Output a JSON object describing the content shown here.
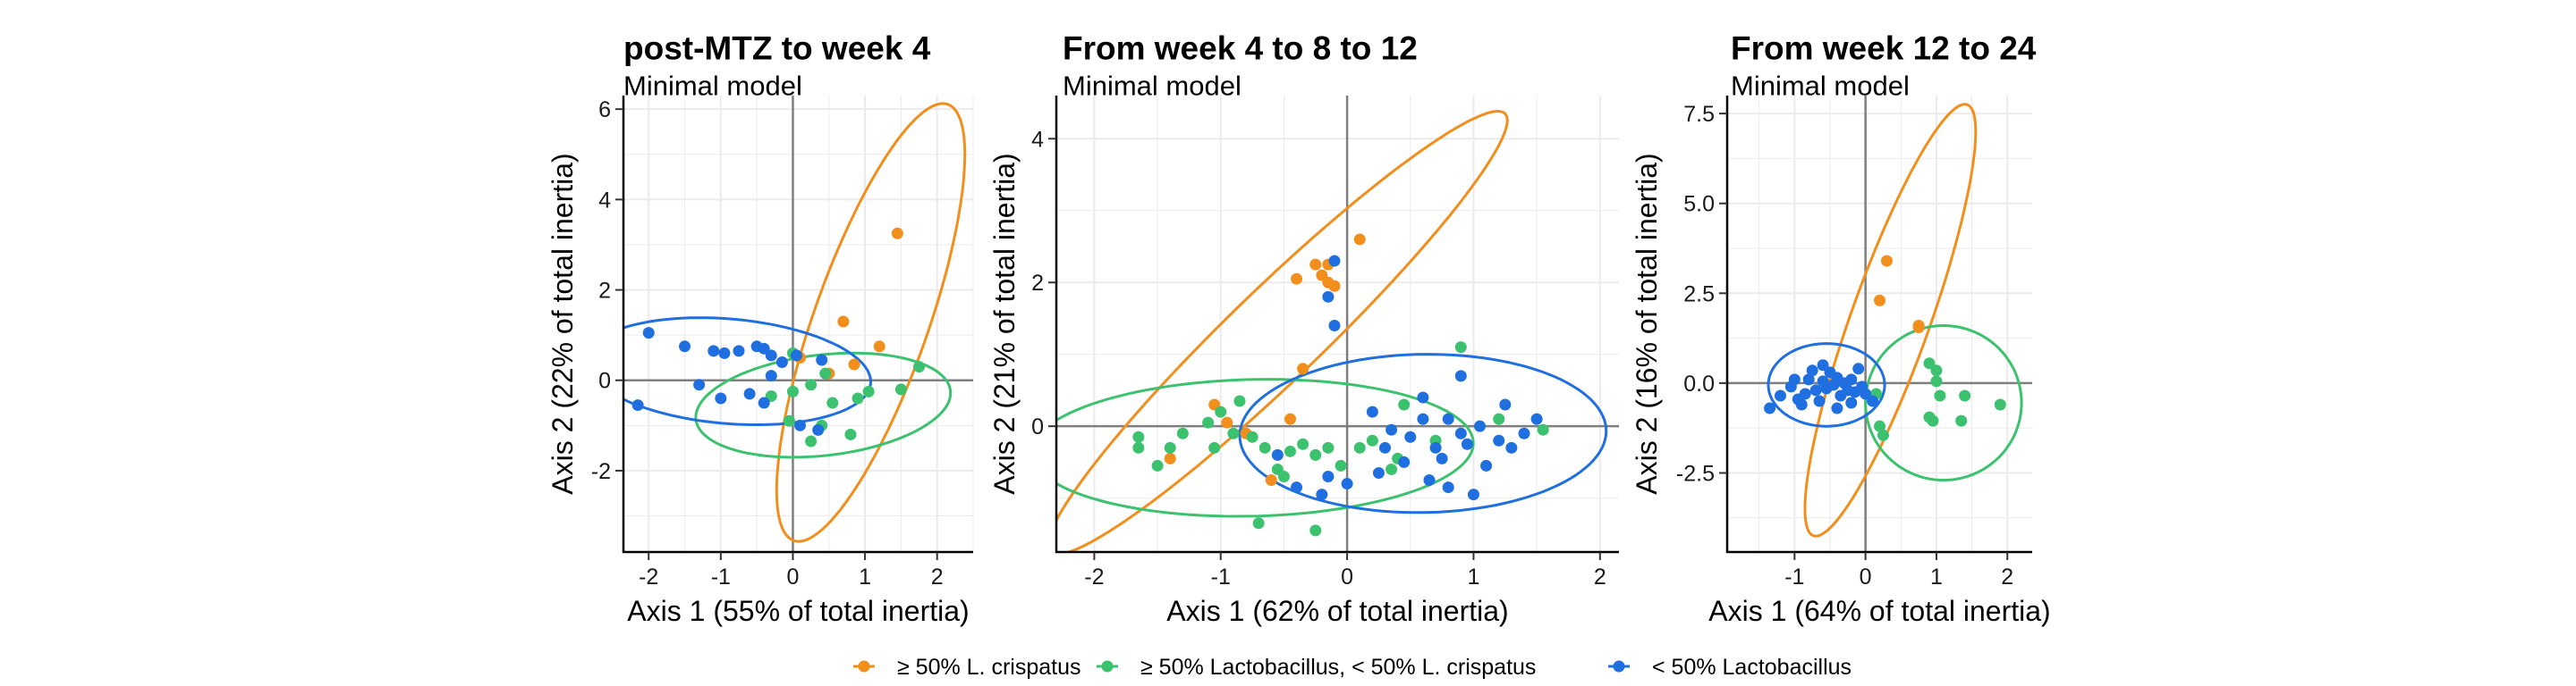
{
  "colors": {
    "crispatus": "#F28E1C",
    "lacto": "#3CC26F",
    "low": "#1F6FE0",
    "grid": "#EBEBEB",
    "zero": "#7F7F7F"
  },
  "legend": {
    "items": [
      {
        "key": "crispatus",
        "label": "≥ 50% L. crispatus"
      },
      {
        "key": "lacto",
        "label": "≥ 50% Lactobacillus, < 50% L. crispatus"
      },
      {
        "key": "low",
        "label": "< 50% Lactobacillus"
      }
    ]
  },
  "chart_data": [
    {
      "type": "scatter",
      "title": "post-MTZ to week 4",
      "subtitle": "Minimal model",
      "xlabel": "Axis 1 (55% of total inertia)",
      "ylabel": "Axis 2 (22% of total inertia)",
      "xlim": [
        -2.35,
        2.5
      ],
      "ylim": [
        -3.8,
        6.3
      ],
      "xticks": [
        -2,
        -1,
        0,
        1,
        2
      ],
      "yticks": [
        -2,
        0,
        2,
        4,
        6
      ],
      "xtick_labels": [
        "-2",
        "-1",
        "0",
        "1",
        "2"
      ],
      "ytick_labels": [
        "-2",
        "0",
        "2",
        "4",
        "6"
      ],
      "series": [
        {
          "key": "crispatus",
          "name": "≥ 50% L. crispatus",
          "points": [
            [
              1.45,
              3.25
            ],
            [
              0.7,
              1.3
            ],
            [
              1.2,
              0.75
            ],
            [
              0.85,
              0.35
            ],
            [
              0.5,
              0.15
            ],
            [
              0.1,
              0.5
            ]
          ],
          "ellipse": {
            "cx": 1.08,
            "cy": 1.28,
            "rx": 4.95,
            "ry": 0.82,
            "angle": 78
          }
        },
        {
          "key": "lacto",
          "name": "≥ 50% Lactobacillus, < 50% L. crispatus",
          "points": [
            [
              1.75,
              0.3
            ],
            [
              1.5,
              -0.2
            ],
            [
              1.05,
              -0.25
            ],
            [
              0.9,
              -0.4
            ],
            [
              0.8,
              -1.2
            ],
            [
              0.4,
              -1.0
            ],
            [
              0.25,
              -1.35
            ],
            [
              -0.05,
              -0.9
            ],
            [
              0.25,
              -0.1
            ],
            [
              0.45,
              0.15
            ],
            [
              -0.3,
              -0.35
            ],
            [
              0.0,
              -0.25
            ],
            [
              0.0,
              0.6
            ],
            [
              0.55,
              -0.5
            ]
          ],
          "ellipse": {
            "cx": 0.42,
            "cy": -0.55,
            "rx": 1.8,
            "ry": 1.1,
            "angle": 14
          }
        },
        {
          "key": "low",
          "name": "< 50% Lactobacillus",
          "points": [
            [
              -2.0,
              1.05
            ],
            [
              -2.15,
              -0.55
            ],
            [
              -1.5,
              0.75
            ],
            [
              -1.1,
              0.65
            ],
            [
              -0.95,
              0.6
            ],
            [
              -0.75,
              0.65
            ],
            [
              -0.5,
              0.75
            ],
            [
              -0.4,
              0.7
            ],
            [
              -0.3,
              0.55
            ],
            [
              -0.15,
              0.4
            ],
            [
              0.05,
              0.55
            ],
            [
              -1.3,
              -0.1
            ],
            [
              -1.0,
              -0.4
            ],
            [
              -0.6,
              -0.3
            ],
            [
              -0.4,
              -0.5
            ],
            [
              -0.3,
              0.1
            ],
            [
              0.4,
              0.45
            ],
            [
              0.1,
              -1.0
            ],
            [
              0.35,
              -1.1
            ]
          ],
          "ellipse": {
            "cx": -0.9,
            "cy": 0.2,
            "rx": 2.0,
            "ry": 1.15,
            "angle": -10
          }
        }
      ]
    },
    {
      "type": "scatter",
      "title": "From week 4 to 8 to 12",
      "subtitle": "Minimal model",
      "xlabel": "Axis 1 (62% of total inertia)",
      "ylabel": "Axis 2 (21% of total inertia)",
      "xlim": [
        -2.3,
        2.15
      ],
      "ylim": [
        -1.75,
        4.6
      ],
      "xticks": [
        -2,
        -1,
        0,
        1,
        2
      ],
      "yticks": [
        0,
        2,
        4
      ],
      "xtick_labels": [
        "-2",
        "-1",
        "0",
        "1",
        "2"
      ],
      "ytick_labels": [
        "0",
        "2",
        "4"
      ],
      "series": [
        {
          "key": "crispatus",
          "name": "≥ 50% L. crispatus",
          "points": [
            [
              0.1,
              2.6
            ],
            [
              -0.25,
              2.25
            ],
            [
              -0.15,
              2.25
            ],
            [
              -0.2,
              2.1
            ],
            [
              -0.15,
              2.0
            ],
            [
              -0.1,
              1.95
            ],
            [
              -0.4,
              2.05
            ],
            [
              -0.35,
              0.8
            ],
            [
              -1.05,
              0.3
            ],
            [
              -0.95,
              0.05
            ],
            [
              -0.45,
              0.1
            ],
            [
              -1.4,
              -0.45
            ],
            [
              -0.8,
              -0.1
            ],
            [
              -0.6,
              -0.75
            ]
          ],
          "ellipse": {
            "cx": -0.55,
            "cy": 1.3,
            "rx": 3.55,
            "ry": 0.45,
            "angle": 60
          }
        },
        {
          "key": "lacto",
          "name": "≥ 50% Lactobacillus, < 50% L. crispatus",
          "points": [
            [
              -1.65,
              -0.15
            ],
            [
              -1.65,
              -0.3
            ],
            [
              -1.5,
              -0.55
            ],
            [
              -1.4,
              -0.3
            ],
            [
              -1.3,
              -0.1
            ],
            [
              -1.1,
              0.05
            ],
            [
              -1.05,
              -0.3
            ],
            [
              -1.0,
              0.2
            ],
            [
              -0.9,
              -0.1
            ],
            [
              -0.85,
              0.35
            ],
            [
              -0.75,
              -0.15
            ],
            [
              -0.65,
              -0.3
            ],
            [
              -0.55,
              -0.6
            ],
            [
              -0.45,
              -0.35
            ],
            [
              -0.35,
              -0.25
            ],
            [
              -0.25,
              -0.4
            ],
            [
              -0.15,
              -0.3
            ],
            [
              -0.05,
              -0.55
            ],
            [
              0.1,
              -0.3
            ],
            [
              0.2,
              -0.2
            ],
            [
              0.35,
              -0.6
            ],
            [
              -0.25,
              -1.45
            ],
            [
              -0.7,
              -1.35
            ],
            [
              0.9,
              1.1
            ],
            [
              0.45,
              0.3
            ],
            [
              1.2,
              0.1
            ],
            [
              1.55,
              -0.05
            ],
            [
              0.7,
              -0.2
            ],
            [
              -0.5,
              -0.7
            ],
            [
              0.4,
              -0.45
            ]
          ],
          "ellipse": {
            "cx": -0.75,
            "cy": -0.3,
            "rx": 1.75,
            "ry": 0.95,
            "angle": 3
          }
        },
        {
          "key": "low",
          "name": "< 50% Lactobacillus",
          "points": [
            [
              -0.1,
              2.3
            ],
            [
              -0.15,
              1.8
            ],
            [
              -0.1,
              1.4
            ],
            [
              -0.55,
              -0.4
            ],
            [
              -0.4,
              -0.85
            ],
            [
              0.0,
              -0.8
            ],
            [
              0.2,
              0.2
            ],
            [
              0.35,
              -0.05
            ],
            [
              0.5,
              -0.15
            ],
            [
              0.6,
              0.1
            ],
            [
              0.7,
              -0.3
            ],
            [
              0.75,
              -0.45
            ],
            [
              0.8,
              0.1
            ],
            [
              0.9,
              -0.1
            ],
            [
              0.95,
              -0.25
            ],
            [
              1.05,
              0.0
            ],
            [
              1.1,
              -0.55
            ],
            [
              1.2,
              -0.2
            ],
            [
              1.3,
              -0.3
            ],
            [
              1.5,
              0.1
            ],
            [
              1.0,
              -0.95
            ],
            [
              0.65,
              -0.75
            ],
            [
              0.45,
              -0.5
            ],
            [
              0.3,
              -0.3
            ],
            [
              -0.15,
              -0.7
            ],
            [
              0.9,
              0.7
            ],
            [
              1.25,
              0.3
            ],
            [
              1.4,
              -0.1
            ],
            [
              0.6,
              0.4
            ],
            [
              0.8,
              -0.85
            ],
            [
              -0.2,
              -0.95
            ],
            [
              0.25,
              -0.65
            ]
          ],
          "ellipse": {
            "cx": 0.6,
            "cy": -0.1,
            "rx": 1.45,
            "ry": 1.1,
            "angle": 3
          }
        }
      ]
    },
    {
      "type": "scatter",
      "title": "From week 12 to 24",
      "subtitle": "Minimal model",
      "xlabel": "Axis 1 (64% of total inertia)",
      "ylabel": "Axis 2 (16% of total inertia)",
      "xlim": [
        -1.95,
        2.35
      ],
      "ylim": [
        -4.7,
        8.0
      ],
      "xticks": [
        -1,
        0,
        1,
        2
      ],
      "yticks": [
        -2.5,
        0.0,
        2.5,
        5.0,
        7.5
      ],
      "xtick_labels": [
        "-1",
        "0",
        "1",
        "2"
      ],
      "ytick_labels": [
        "-2.5",
        "0.0",
        "2.5",
        "5.0",
        "7.5"
      ],
      "series": [
        {
          "key": "crispatus",
          "name": "≥ 50% L. crispatus",
          "points": [
            [
              0.3,
              3.4
            ],
            [
              0.2,
              2.3
            ],
            [
              0.75,
              1.6
            ],
            [
              0.75,
              1.55
            ]
          ],
          "ellipse": {
            "cx": 0.35,
            "cy": 1.75,
            "rx": 6.1,
            "ry": 0.58,
            "angle": 80
          }
        },
        {
          "key": "lacto",
          "name": "≥ 50% Lactobacillus, < 50% L. crispatus",
          "points": [
            [
              0.9,
              0.55
            ],
            [
              1.0,
              0.35
            ],
            [
              1.0,
              0.05
            ],
            [
              1.05,
              -0.35
            ],
            [
              0.9,
              -0.95
            ],
            [
              0.95,
              -1.05
            ],
            [
              1.4,
              -0.35
            ],
            [
              1.35,
              -1.05
            ],
            [
              1.9,
              -0.6
            ],
            [
              0.2,
              -1.2
            ],
            [
              0.25,
              -1.45
            ],
            [
              0.15,
              -0.3
            ]
          ],
          "ellipse": {
            "cx": 1.1,
            "cy": -0.55,
            "rx": 1.1,
            "ry": 2.15,
            "angle": 0
          }
        },
        {
          "key": "low",
          "name": "< 50% Lactobacillus",
          "points": [
            [
              -1.35,
              -0.7
            ],
            [
              -1.2,
              -0.35
            ],
            [
              -1.05,
              -0.1
            ],
            [
              -1.0,
              0.1
            ],
            [
              -0.95,
              -0.45
            ],
            [
              -0.85,
              -0.3
            ],
            [
              -0.8,
              0.1
            ],
            [
              -0.75,
              0.35
            ],
            [
              -0.7,
              -0.2
            ],
            [
              -0.65,
              -0.5
            ],
            [
              -0.6,
              0.05
            ],
            [
              -0.55,
              -0.15
            ],
            [
              -0.5,
              0.3
            ],
            [
              -0.45,
              -0.05
            ],
            [
              -0.4,
              0.15
            ],
            [
              -0.35,
              -0.35
            ],
            [
              -0.3,
              0.0
            ],
            [
              -0.25,
              -0.2
            ],
            [
              -0.2,
              0.1
            ],
            [
              -0.15,
              -0.25
            ],
            [
              -0.1,
              0.4
            ],
            [
              -0.05,
              -0.1
            ],
            [
              0.0,
              -0.3
            ],
            [
              -0.6,
              0.5
            ],
            [
              -0.9,
              -0.6
            ],
            [
              -0.4,
              -0.7
            ],
            [
              -0.2,
              -0.55
            ],
            [
              0.1,
              -0.5
            ]
          ],
          "ellipse": {
            "cx": -0.55,
            "cy": -0.05,
            "rx": 0.82,
            "ry": 1.15,
            "angle": 0
          }
        }
      ]
    }
  ]
}
